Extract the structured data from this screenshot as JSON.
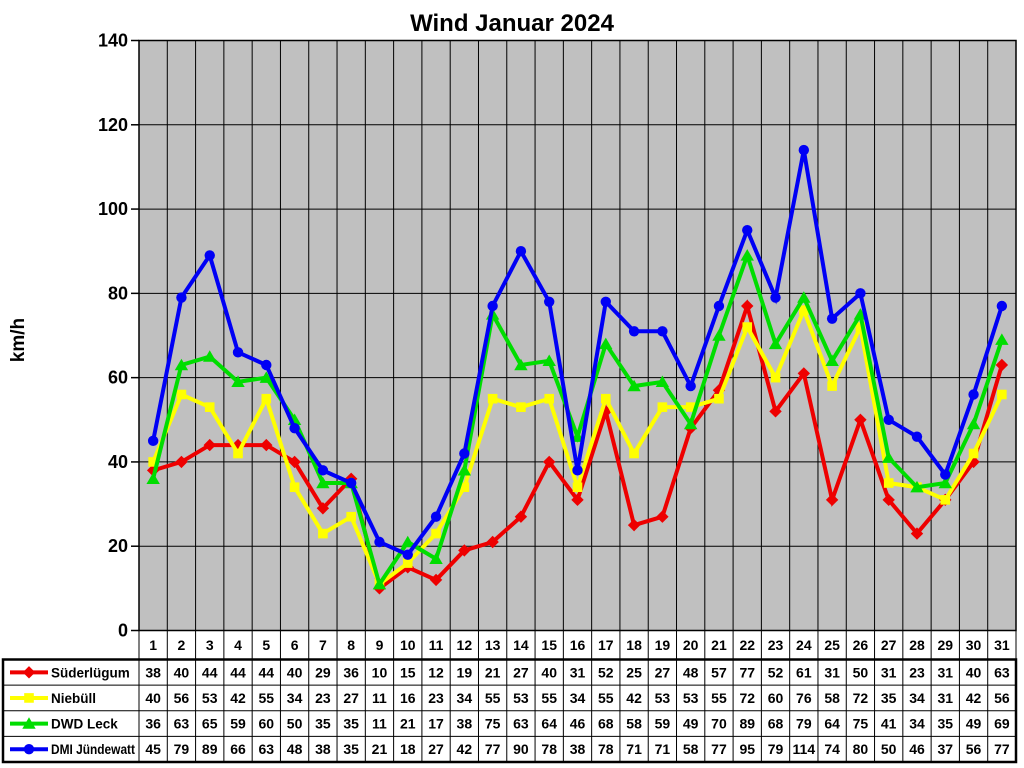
{
  "title": "Wind Januar 2024",
  "chart_data": {
    "type": "line",
    "title": "Wind Januar 2024",
    "xlabel": "",
    "ylabel": "km/h",
    "ylim": [
      0,
      140
    ],
    "ytick_step": 20,
    "yticks": [
      0,
      20,
      40,
      60,
      80,
      100,
      120,
      140
    ],
    "grid": true,
    "plot_background": "#c0c0c0",
    "grid_color": "#000000",
    "legend_position": "table-left-bottom",
    "categories": [
      "1",
      "2",
      "3",
      "4",
      "5",
      "6",
      "7",
      "8",
      "9",
      "10",
      "11",
      "12",
      "13",
      "14",
      "15",
      "16",
      "17",
      "18",
      "19",
      "20",
      "21",
      "22",
      "23",
      "24",
      "25",
      "26",
      "27",
      "28",
      "29",
      "30",
      "31"
    ],
    "series": [
      {
        "name": "Süderlügum",
        "color": "#ee0000",
        "marker": "diamond",
        "values": [
          38,
          40,
          44,
          44,
          44,
          40,
          29,
          36,
          10,
          15,
          12,
          19,
          21,
          27,
          40,
          31,
          52,
          25,
          27,
          48,
          57,
          77,
          52,
          61,
          31,
          50,
          31,
          23,
          31,
          40,
          63
        ]
      },
      {
        "name": "Niebüll",
        "color": "#ffff00",
        "marker": "square",
        "values": [
          40,
          56,
          53,
          42,
          55,
          34,
          23,
          27,
          11,
          16,
          23,
          34,
          55,
          53,
          55,
          34,
          55,
          42,
          53,
          53,
          55,
          72,
          60,
          76,
          58,
          72,
          35,
          34,
          31,
          42,
          56
        ]
      },
      {
        "name": "DWD Leck",
        "color": "#00dd00",
        "marker": "triangle",
        "values": [
          36,
          63,
          65,
          59,
          60,
          50,
          35,
          35,
          11,
          21,
          17,
          38,
          75,
          63,
          64,
          46,
          68,
          58,
          59,
          49,
          70,
          89,
          68,
          79,
          64,
          75,
          41,
          34,
          35,
          49,
          69
        ]
      },
      {
        "name": "DMI Jündewatt",
        "color": "#0000f5",
        "marker": "circle",
        "values": [
          45,
          79,
          89,
          66,
          63,
          48,
          38,
          35,
          21,
          18,
          27,
          42,
          77,
          90,
          78,
          38,
          78,
          71,
          71,
          58,
          77,
          95,
          79,
          114,
          74,
          80,
          50,
          46,
          37,
          56,
          77
        ]
      }
    ]
  }
}
